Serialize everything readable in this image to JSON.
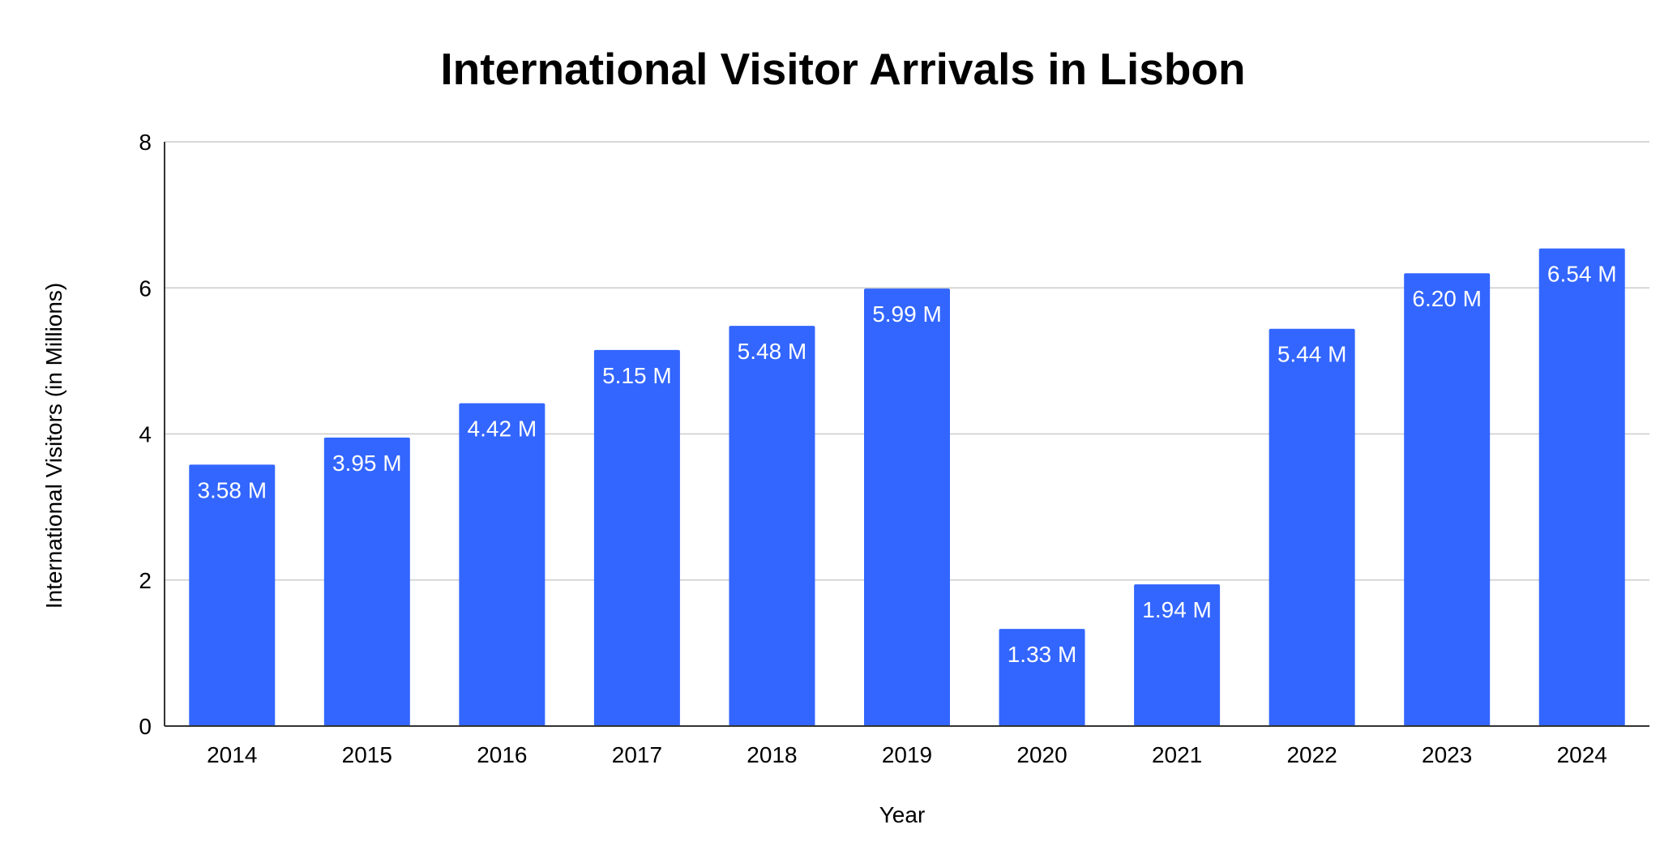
{
  "chart_data": {
    "type": "bar",
    "title": "International Visitor Arrivals in Lisbon",
    "xlabel": "Year",
    "ylabel": "International Visitors (in Millions)",
    "categories": [
      "2014",
      "2015",
      "2016",
      "2017",
      "2018",
      "2019",
      "2020",
      "2021",
      "2022",
      "2023",
      "2024"
    ],
    "values": [
      3.58,
      3.95,
      4.42,
      5.15,
      5.48,
      5.99,
      1.33,
      1.94,
      5.44,
      6.2,
      6.54
    ],
    "data_labels": [
      "3.58 M",
      "3.95 M",
      "4.42 M",
      "5.15 M",
      "5.48 M",
      "5.99 M",
      "1.33 M",
      "1.94 M",
      "5.44 M",
      "6.20 M",
      "6.54 M"
    ],
    "ylim": [
      0,
      8
    ],
    "yticks": [
      "0",
      "2",
      "4",
      "6",
      "8"
    ],
    "grid": true,
    "legend": "none",
    "colors": {
      "bar": "#3366ff",
      "grid": "#cccccc",
      "axis": "#333333",
      "text": "#000000",
      "label": "#ffffff"
    }
  }
}
